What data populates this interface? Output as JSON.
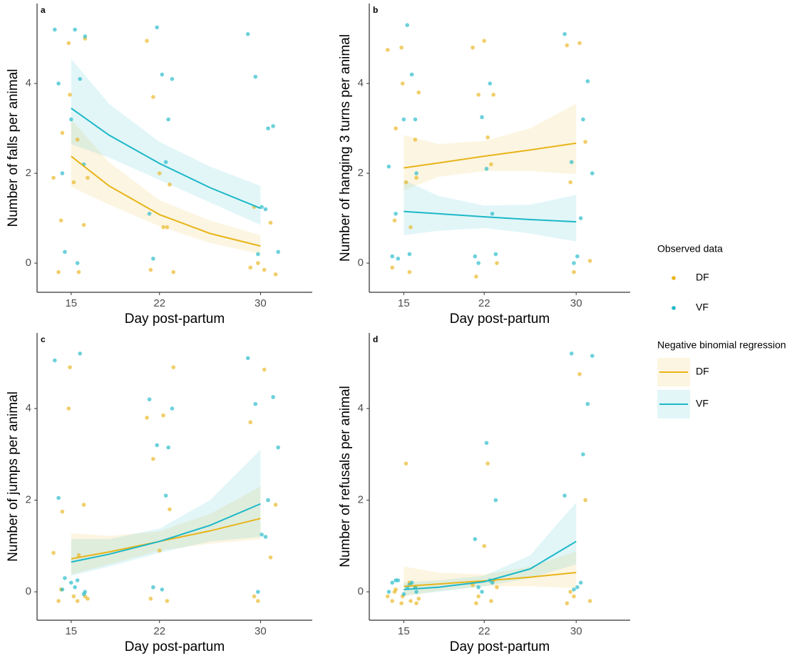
{
  "legend": {
    "observed_title": "Observed data",
    "regression_title": "Negative binomial regression"
  },
  "chart_data": [
    {
      "type": "scatter-regression",
      "label": "a",
      "xlabel": "Day post-partum",
      "ylabel": "Number of falls per animal",
      "xlim": [
        12.3,
        34.1
      ],
      "ylim": [
        -0.65,
        5.78
      ],
      "xticks": [
        15,
        22,
        30
      ],
      "yticks": [
        0,
        2,
        4
      ],
      "points": [
        {
          "name": "DF",
          "color": "#e8b41a",
          "x": [
            13.6,
            14.0,
            14.3,
            14.8,
            15.2,
            15.6,
            16.0,
            16.3,
            14.2,
            14.9,
            15.5,
            16.1,
            21.0,
            21.5,
            22.0,
            22.6,
            23.1,
            21.3,
            22.3,
            22.8,
            29.2,
            29.8,
            30.3,
            30.8,
            31.2,
            29.5
          ],
          "values": [
            1.9,
            -0.2,
            2.9,
            4.9,
            1.8,
            -0.2,
            0.85,
            1.9,
            0.95,
            3.75,
            2.75,
            5.0,
            4.95,
            3.7,
            2.0,
            0.8,
            -0.2,
            -0.15,
            0.8,
            1.75,
            -0.1,
            0.0,
            -0.15,
            0.9,
            -0.25,
            1.25
          ]
        },
        {
          "name": "VF",
          "color": "#1cb8c8",
          "x": [
            13.7,
            14.0,
            14.5,
            15.0,
            15.3,
            15.7,
            16.1,
            14.3,
            15.5,
            16.0,
            21.2,
            21.8,
            22.2,
            22.7,
            23.0,
            21.5,
            22.5,
            29.0,
            29.6,
            30.1,
            30.6,
            31.0,
            31.4,
            29.8,
            30.4
          ],
          "values": [
            5.2,
            4.0,
            0.25,
            3.2,
            5.2,
            4.1,
            5.05,
            2.0,
            0.0,
            2.2,
            1.1,
            5.25,
            4.2,
            3.2,
            4.1,
            0.1,
            2.25,
            5.1,
            4.15,
            1.25,
            3.0,
            3.05,
            0.25,
            0.2,
            1.2
          ]
        }
      ],
      "series": [
        {
          "name": "DF",
          "color": "#e8b41a",
          "x": [
            15,
            18,
            22,
            26,
            30
          ],
          "values": [
            2.38,
            1.72,
            1.08,
            0.66,
            0.38
          ],
          "lower": [
            1.7,
            1.3,
            0.82,
            0.45,
            0.2
          ],
          "upper": [
            3.2,
            2.25,
            1.4,
            0.95,
            0.62
          ]
        },
        {
          "name": "VF",
          "color": "#1cb8c8",
          "x": [
            15,
            18,
            22,
            26,
            30
          ],
          "values": [
            3.45,
            2.85,
            2.22,
            1.68,
            1.22
          ],
          "lower": [
            2.65,
            2.35,
            1.85,
            1.35,
            0.85
          ],
          "upper": [
            4.55,
            3.55,
            2.7,
            2.15,
            1.72
          ]
        }
      ]
    },
    {
      "type": "scatter-regression",
      "label": "b",
      "xlabel": "Day post-partum",
      "ylabel": "Number of hanging 3 turns per animal",
      "xlim": [
        12.0,
        34.7
      ],
      "ylim": [
        -0.65,
        5.78
      ],
      "xticks": [
        15,
        22,
        30
      ],
      "yticks": [
        0,
        2,
        4
      ],
      "points": [
        {
          "name": "DF",
          "color": "#e8b41a",
          "x": [
            13.6,
            14.0,
            14.3,
            14.8,
            15.2,
            15.6,
            16.0,
            16.3,
            14.2,
            14.9,
            15.5,
            16.1,
            21.0,
            21.5,
            22.0,
            22.6,
            23.1,
            21.3,
            22.3,
            22.8,
            29.2,
            29.8,
            30.3,
            30.8,
            31.2,
            29.5
          ],
          "values": [
            4.75,
            -0.1,
            3.0,
            4.8,
            1.8,
            0.8,
            2.75,
            3.8,
            0.95,
            4.0,
            -0.2,
            1.9,
            4.8,
            3.75,
            4.95,
            2.2,
            0.0,
            -0.3,
            2.8,
            3.75,
            4.85,
            -0.2,
            4.9,
            2.7,
            0.05,
            1.8
          ]
        },
        {
          "name": "VF",
          "color": "#1cb8c8",
          "x": [
            13.7,
            14.0,
            14.5,
            15.0,
            15.3,
            15.7,
            16.1,
            14.3,
            15.5,
            16.0,
            21.2,
            21.8,
            22.2,
            22.7,
            23.0,
            21.5,
            22.5,
            29.0,
            29.6,
            30.1,
            30.6,
            31.0,
            31.4,
            29.8,
            30.4
          ],
          "values": [
            2.15,
            0.15,
            0.1,
            3.2,
            5.3,
            4.2,
            2.0,
            1.1,
            0.2,
            3.2,
            0.15,
            3.25,
            2.1,
            1.1,
            0.2,
            0.0,
            4.0,
            5.1,
            2.25,
            0.15,
            3.2,
            4.05,
            2.0,
            0.0,
            1.0
          ]
        }
      ],
      "series": [
        {
          "name": "DF",
          "color": "#e8b41a",
          "x": [
            15,
            18,
            22,
            26,
            30
          ],
          "values": [
            2.12,
            2.23,
            2.38,
            2.52,
            2.67
          ],
          "lower": [
            1.62,
            1.92,
            2.05,
            2.05,
            1.98
          ],
          "upper": [
            2.85,
            2.65,
            2.72,
            3.0,
            3.55
          ]
        },
        {
          "name": "VF",
          "color": "#1cb8c8",
          "x": [
            15,
            18,
            22,
            26,
            30
          ],
          "values": [
            1.15,
            1.1,
            1.03,
            0.97,
            0.92
          ],
          "lower": [
            0.62,
            0.72,
            0.78,
            0.66,
            0.48
          ],
          "upper": [
            1.85,
            1.5,
            1.28,
            1.3,
            1.52
          ]
        }
      ]
    },
    {
      "type": "scatter-regression",
      "label": "c",
      "xlabel": "Day post-partum",
      "ylabel": "Number of jumps per animal",
      "xlim": [
        12.3,
        34.1
      ],
      "ylim": [
        -0.62,
        5.65
      ],
      "xticks": [
        15,
        22,
        30
      ],
      "yticks": [
        0,
        2,
        4
      ],
      "points": [
        {
          "name": "DF",
          "color": "#e8b41a",
          "x": [
            13.6,
            14.0,
            14.3,
            14.8,
            15.2,
            15.6,
            16.0,
            16.3,
            14.2,
            14.9,
            15.5,
            16.1,
            21.0,
            21.5,
            22.0,
            22.6,
            23.1,
            21.3,
            22.3,
            22.8,
            29.2,
            29.8,
            30.3,
            30.8,
            31.2,
            29.5
          ],
          "values": [
            0.85,
            -0.2,
            1.75,
            4.0,
            -0.1,
            0.8,
            1.9,
            -0.15,
            0.05,
            4.9,
            -0.2,
            -0.1,
            3.8,
            2.9,
            0.9,
            -0.2,
            4.9,
            -0.15,
            3.85,
            1.8,
            3.7,
            -0.2,
            4.85,
            0.75,
            1.9,
            -0.1
          ]
        },
        {
          "name": "VF",
          "color": "#1cb8c8",
          "x": [
            13.7,
            14.0,
            14.5,
            15.0,
            15.3,
            15.7,
            16.1,
            14.3,
            15.5,
            16.0,
            21.2,
            21.8,
            22.2,
            22.7,
            23.0,
            21.5,
            22.5,
            29.0,
            29.6,
            30.1,
            30.6,
            31.0,
            31.4,
            29.8,
            30.4
          ],
          "values": [
            5.05,
            2.05,
            0.3,
            0.2,
            0.1,
            5.2,
            0.0,
            0.05,
            0.25,
            -0.05,
            4.2,
            3.2,
            0.05,
            3.15,
            4.0,
            0.1,
            2.1,
            5.1,
            4.1,
            1.25,
            2.0,
            4.25,
            3.15,
            0.0,
            1.2
          ]
        }
      ],
      "series": [
        {
          "name": "DF",
          "color": "#e8b41a",
          "x": [
            15,
            18,
            22,
            26,
            30
          ],
          "values": [
            0.72,
            0.87,
            1.1,
            1.33,
            1.6
          ],
          "lower": [
            0.38,
            0.6,
            0.9,
            1.05,
            1.15
          ],
          "upper": [
            1.28,
            1.22,
            1.32,
            1.7,
            2.3
          ]
        },
        {
          "name": "VF",
          "color": "#1cb8c8",
          "x": [
            15,
            18,
            22,
            26,
            30
          ],
          "values": [
            0.65,
            0.82,
            1.1,
            1.45,
            1.92
          ],
          "lower": [
            0.35,
            0.55,
            0.85,
            1.1,
            1.2
          ],
          "upper": [
            1.15,
            1.15,
            1.38,
            2.0,
            3.1
          ]
        }
      ]
    },
    {
      "type": "scatter-regression",
      "label": "d",
      "xlabel": "Day post-partum",
      "ylabel": "Number of refusals per animal",
      "xlim": [
        12.0,
        34.7
      ],
      "ylim": [
        -0.62,
        5.65
      ],
      "xticks": [
        15,
        22,
        30
      ],
      "yticks": [
        0,
        2,
        4
      ],
      "points": [
        {
          "name": "DF",
          "color": "#e8b41a",
          "x": [
            13.6,
            14.0,
            14.3,
            14.8,
            15.2,
            15.6,
            16.0,
            16.3,
            14.2,
            14.9,
            15.5,
            16.1,
            21.0,
            21.5,
            22.0,
            22.6,
            23.1,
            21.3,
            22.3,
            22.8,
            29.2,
            29.8,
            30.3,
            30.8,
            31.2,
            29.5
          ],
          "values": [
            -0.1,
            -0.2,
            0.05,
            -0.25,
            2.8,
            -0.2,
            0.1,
            -0.15,
            0.0,
            -0.1,
            0.2,
            -0.25,
            0.15,
            -0.1,
            1.0,
            -0.2,
            0.1,
            -0.25,
            2.8,
            0.25,
            -0.25,
            -0.1,
            4.75,
            2.0,
            -0.2,
            0.0
          ]
        },
        {
          "name": "VF",
          "color": "#1cb8c8",
          "x": [
            13.7,
            14.0,
            14.5,
            15.0,
            15.3,
            15.7,
            16.1,
            14.3,
            15.5,
            16.0,
            21.2,
            21.8,
            22.2,
            22.7,
            23.0,
            21.5,
            22.5,
            29.0,
            29.6,
            30.1,
            30.6,
            31.0,
            31.4,
            29.8,
            30.4
          ],
          "values": [
            0.0,
            0.2,
            0.25,
            -0.05,
            0.1,
            0.2,
            0.0,
            0.25,
            0.15,
            0.1,
            1.15,
            0.0,
            3.25,
            0.2,
            2.0,
            0.1,
            0.25,
            2.1,
            5.2,
            0.1,
            3.0,
            4.1,
            5.15,
            0.05,
            0.2
          ]
        }
      ],
      "series": [
        {
          "name": "DF",
          "color": "#e8b41a",
          "x": [
            15,
            18,
            22,
            26,
            30
          ],
          "values": [
            0.12,
            0.17,
            0.24,
            0.32,
            0.42
          ],
          "lower": [
            -0.1,
            0.02,
            0.12,
            0.12,
            0.08
          ],
          "upper": [
            0.55,
            0.42,
            0.38,
            0.55,
            0.88
          ]
        },
        {
          "name": "VF",
          "color": "#1cb8c8",
          "x": [
            15,
            18,
            22,
            26,
            30
          ],
          "values": [
            0.05,
            0.1,
            0.22,
            0.5,
            1.1
          ],
          "lower": [
            -0.08,
            0.0,
            0.12,
            0.3,
            0.6
          ],
          "upper": [
            0.2,
            0.25,
            0.35,
            0.8,
            1.95
          ]
        }
      ]
    }
  ]
}
